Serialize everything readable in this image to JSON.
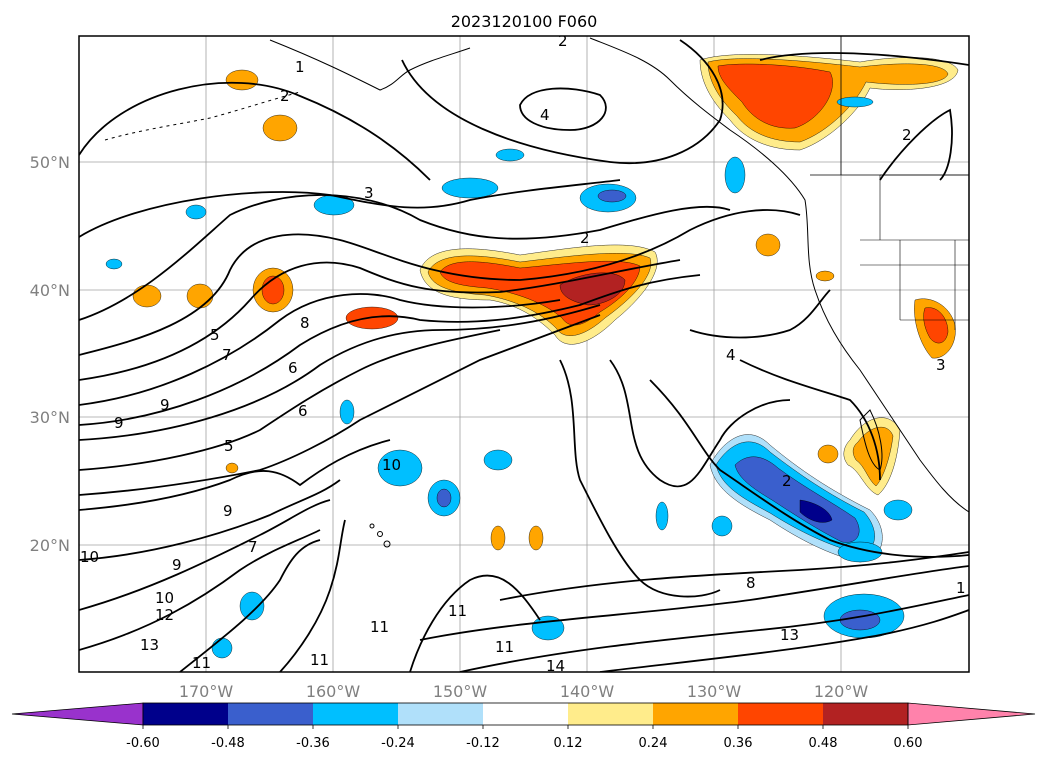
{
  "title": "2023120100 F060",
  "lat_labels": [
    "50°N",
    "40°N",
    "30°N",
    "20°N"
  ],
  "lon_labels": [
    "170°W",
    "160°W",
    "150°W",
    "140°W",
    "130°W",
    "120°W"
  ],
  "colorbar": {
    "ticks": [
      "-0.60",
      "-0.48",
      "-0.36",
      "-0.24",
      "-0.12",
      "0.12",
      "0.24",
      "0.36",
      "0.48",
      "0.60"
    ],
    "colors": [
      "#9932cc",
      "#00008b",
      "#3a5fcd",
      "#00bfff",
      "#b0e0fa",
      "#ffffff",
      "#ffec8b",
      "#ffa500",
      "#ff4500",
      "#b22222",
      "#ff82ab"
    ]
  },
  "contour_labels": [
    "1",
    "2",
    "2",
    "2",
    "2",
    "2",
    "3",
    "4",
    "4",
    "5",
    "5",
    "6",
    "6",
    "7",
    "7",
    "8",
    "8",
    "9",
    "9",
    "9",
    "9",
    "10",
    "10",
    "10",
    "11",
    "11",
    "11",
    "11",
    "11",
    "12",
    "13",
    "13",
    "14",
    "1",
    "3"
  ]
}
